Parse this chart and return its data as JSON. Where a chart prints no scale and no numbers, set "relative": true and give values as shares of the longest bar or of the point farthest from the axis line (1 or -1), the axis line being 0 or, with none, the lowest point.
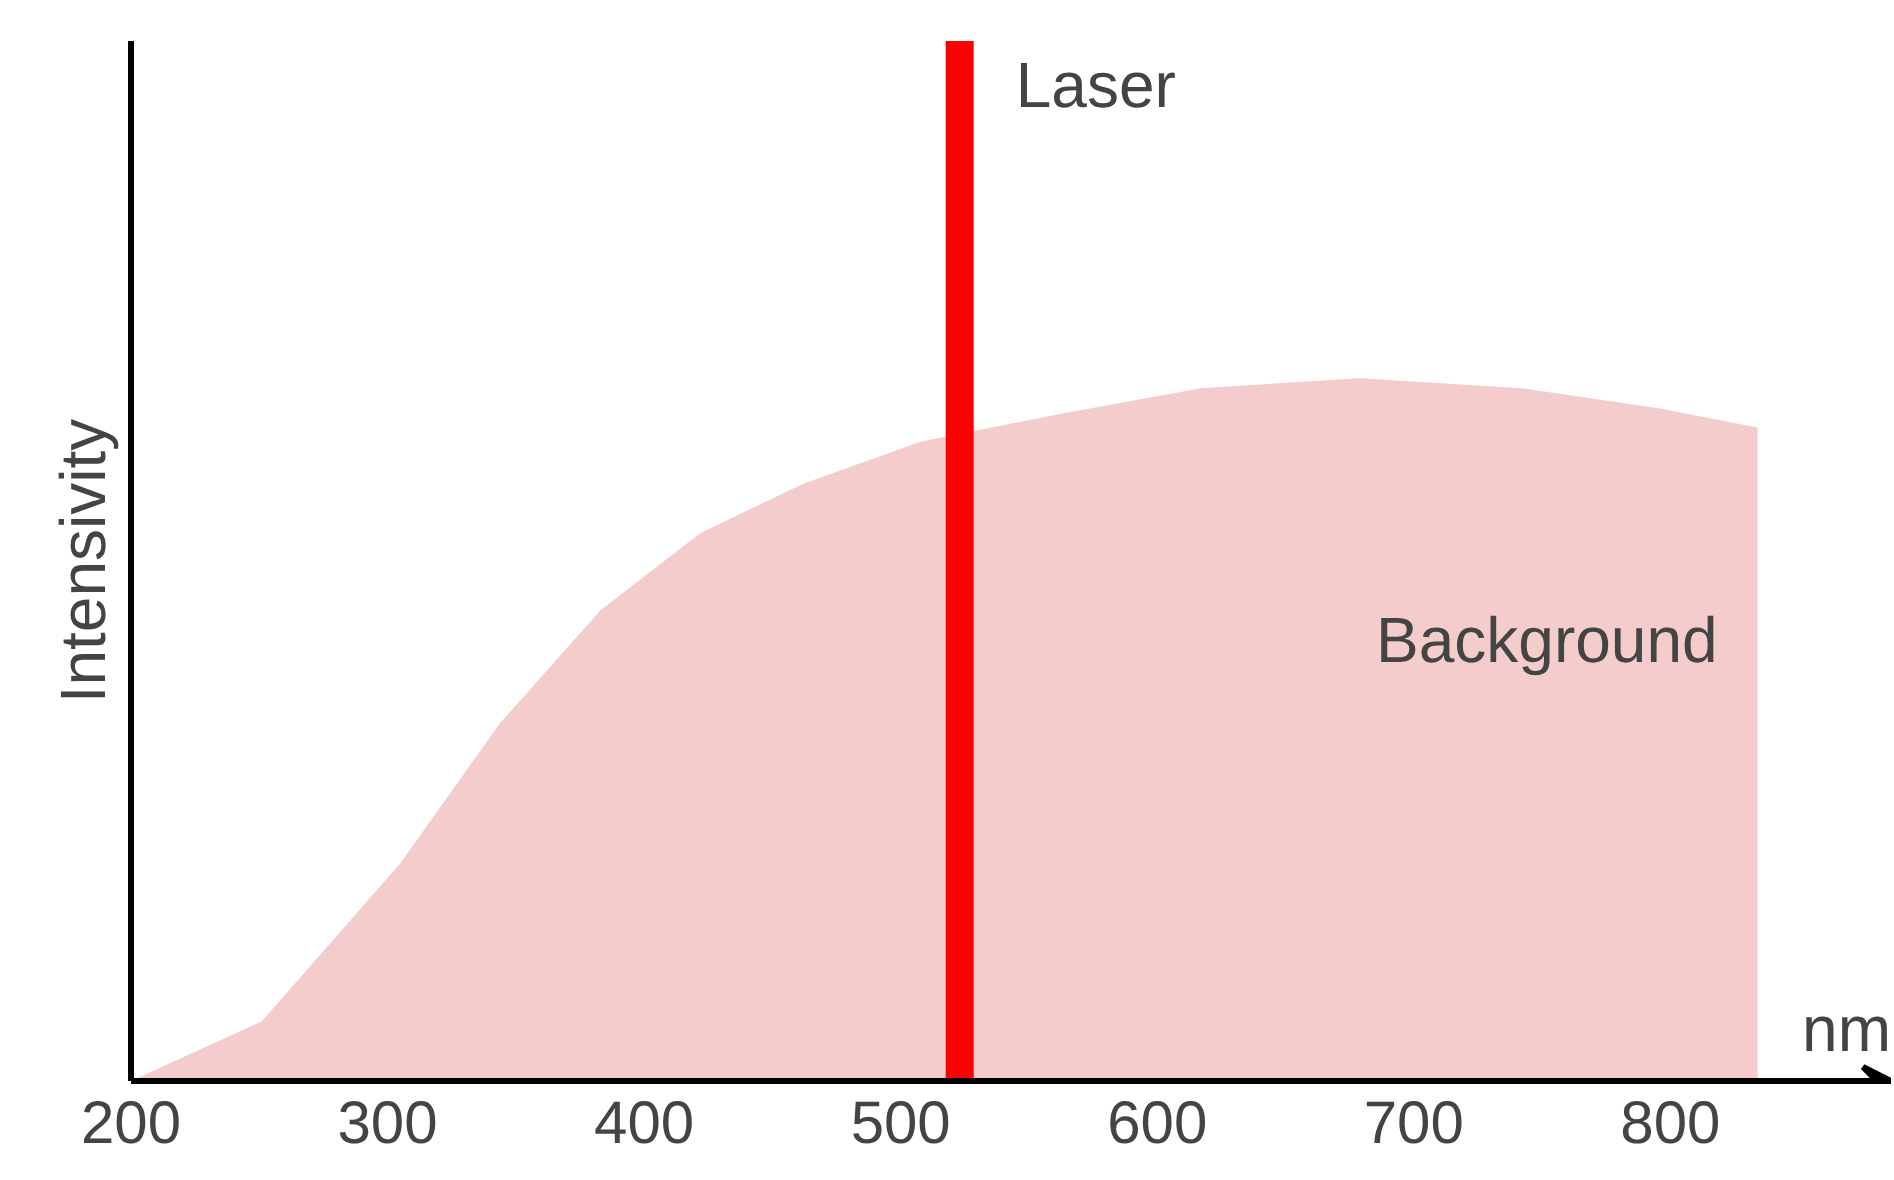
{
  "chart_data": {
    "type": "area",
    "relative": true,
    "xlabel": "nm",
    "ylabel": "Intensivity",
    "x": [
      200,
      251,
      305,
      344,
      383,
      422,
      462,
      508,
      563,
      617,
      679,
      742,
      796,
      834
    ],
    "series": [
      {
        "name": "Background",
        "color": "#f4cccc",
        "values": [
          0,
          0.085,
          0.31,
          0.51,
          0.67,
          0.78,
          0.85,
          0.91,
          0.95,
          0.986,
          1,
          0.986,
          0.957,
          0.93
        ]
      }
    ],
    "xlim": [
      200,
      886
    ],
    "xticks": [
      200,
      300,
      400,
      500,
      600,
      700,
      800
    ],
    "ref_lines": [
      {
        "axis": "x",
        "value": 523,
        "label": "Laser",
        "color": "#ff0000"
      }
    ],
    "grid": false
  }
}
